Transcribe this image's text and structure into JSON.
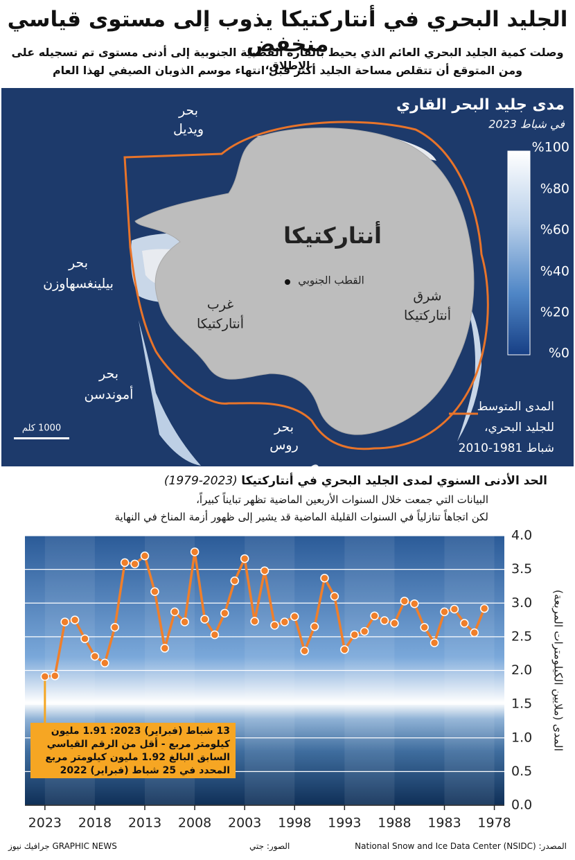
{
  "header": {
    "title": "الجليد البحري في أنتاركتيكا يذوب إلى مستوى قياسي منخفض",
    "subtitle_lines": [
      "وصلت كمية الجليد البحري العائم الذي يحيط بالقارة القطبية الجنوبية إلى أدنى مستوى تم تسجيله على الإطلاق،",
      "ومن المتوقع أن تتقلص مساحة الجليد أكثر قبل انتهاء موسم الذوبان الصيفي لهذا العام"
    ]
  },
  "map": {
    "title": "مدى جليد البحر القاري",
    "subtitle": "في شباط 2023",
    "colorbar_labels": [
      "%100",
      "%80",
      "%60",
      "%40",
      "%20",
      "%0"
    ],
    "continent_label": "أنتاركتيكا",
    "south_pole": "القطب الجنوبي",
    "west": [
      "غرب",
      "أنتاركتيكا"
    ],
    "east": [
      "شرق",
      "أنتاركتيكا"
    ],
    "weddell": [
      "بحر",
      "ويديل"
    ],
    "bellingshausen": [
      "بحر",
      "بيلينغسهاوزن"
    ],
    "amundsen": [
      "بحر",
      "أموندسن"
    ],
    "ross": [
      "بحر",
      "روس"
    ],
    "scale": "1000 كلم",
    "legend_lines": [
      "المدى المتوسط",
      "للجليد البحري،",
      "شباط 1981-2010"
    ]
  },
  "chart_data": {
    "type": "line",
    "title": "الحد الأدنى السنوي لمدى الجليد البحري في أنتاركتيكا",
    "title_years": "(1979-2023)",
    "subtitle_lines": [
      "البيانات التي جمعت خلال السنوات الأربعين الماضية تظهر تبايناً كبيراً،",
      "لكن اتجاهاً تنازلياً في السنوات القليلة الماضية قد يشير إلى ظهور أزمة المناخ في النهاية"
    ],
    "y_label": "المدى (ملايين الكيلومترات المربعة)",
    "x": [
      2023,
      2022,
      2021,
      2020,
      2019,
      2018,
      2017,
      2016,
      2015,
      2014,
      2013,
      2012,
      2011,
      2010,
      2009,
      2008,
      2007,
      2006,
      2005,
      2004,
      2003,
      2002,
      2001,
      2000,
      1999,
      1998,
      1997,
      1996,
      1995,
      1994,
      1993,
      1992,
      1991,
      1990,
      1989,
      1988,
      1987,
      1986,
      1985,
      1984,
      1983,
      1982,
      1981,
      1980,
      1979
    ],
    "values": [
      1.91,
      1.92,
      2.72,
      2.75,
      2.47,
      2.21,
      2.11,
      2.64,
      3.6,
      3.58,
      3.7,
      3.17,
      2.33,
      2.87,
      2.72,
      3.76,
      2.76,
      2.53,
      2.85,
      3.33,
      3.66,
      2.73,
      3.48,
      2.67,
      2.72,
      2.8,
      2.29,
      2.65,
      3.37,
      3.1,
      2.31,
      2.53,
      2.58,
      2.81,
      2.74,
      2.7,
      3.03,
      2.99,
      2.64,
      2.41,
      2.87,
      2.91,
      2.7,
      2.56,
      2.92
    ],
    "color": "#f07f2a",
    "xlim": [
      2025,
      1977
    ],
    "xticks": [
      2023,
      2018,
      2013,
      2008,
      2003,
      1998,
      1993,
      1988,
      1983,
      1978
    ],
    "ylim": [
      0,
      4
    ],
    "yticks": [
      {
        "value": 0,
        "label": "0.0"
      },
      0.5,
      {
        "value": 1,
        "label": "1.0"
      },
      1.5,
      {
        "value": 2,
        "label": "2.0"
      },
      2.5,
      {
        "value": 3,
        "label": "3.0"
      },
      3.5,
      {
        "value": 4,
        "label": "4.0"
      }
    ],
    "grid": true,
    "annotation_lines": [
      "13 شباط (فبراير) 2023: 1.91 مليون",
      "كيلومتر مربع - أقل من الرقم القياسي",
      "السابق البالغ 1.92 مليون كيلومتر مربع",
      "المحدد في 25 شباط (فبراير) 2022"
    ]
  },
  "footer": {
    "source": "المصدر: National Snow and Ice Data Center (NSIDC)",
    "photos": "الصور: جتي",
    "credit": "GRAPHIC NEWS جرافيك نيوز"
  }
}
